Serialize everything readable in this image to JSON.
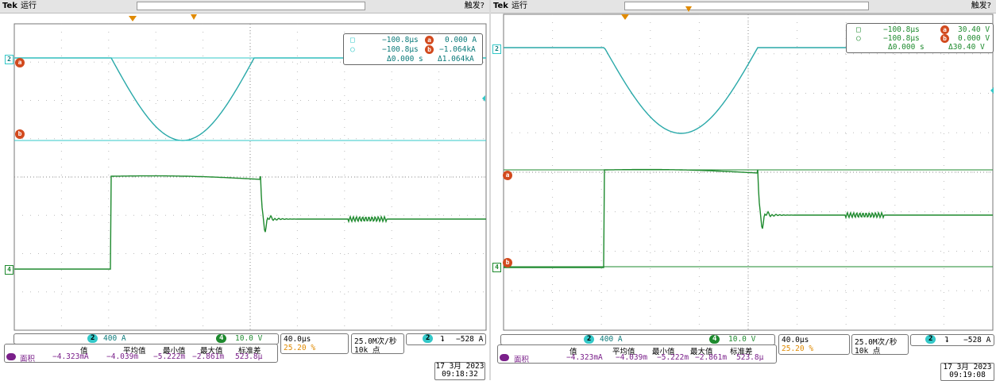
{
  "colors": {
    "ch2": "#33c8c8",
    "ch4": "#1e8a2e",
    "cursor": "#d24a1e",
    "math": "#7a1f8a",
    "grid": "#9a9a9a",
    "trigger": "#e08a00"
  },
  "screens": [
    {
      "brand": "Tek",
      "status": "运行",
      "trigger_status": "触发?",
      "cursor_readout": {
        "row1": {
          "time": "−100.8μs",
          "marker": "a",
          "value": "0.000 A"
        },
        "row2": {
          "time": "−100.8μs",
          "marker": "b",
          "value": "−1.064kA"
        },
        "row3": {
          "dt": "Δ0.000 s",
          "dv": "Δ1.064kA"
        }
      },
      "ch2_scale": {
        "num": "2",
        "value": "400 A"
      },
      "ch4_scale": {
        "num": "4",
        "value": "10.0 V"
      },
      "timebase": {
        "value": "40.0μs",
        "trig_pos": "25.20 %"
      },
      "sample": {
        "rate": "25.0M次/秒",
        "points": "10k 点"
      },
      "trigger": {
        "num": "2",
        "slope": "⮧",
        "level": "−528 A"
      },
      "measure": {
        "label": "面积",
        "headers": [
          "值",
          "平均值",
          "最小值",
          "最大值",
          "标准差"
        ],
        "values": [
          "−4.323mA",
          "−4.039m",
          "−5.222m",
          "−2.861m",
          "523.8μ"
        ]
      },
      "date": "17 3月  2023",
      "time": "09:18:32"
    },
    {
      "brand": "Tek",
      "status": "运行",
      "trigger_status": "触发?",
      "cursor_readout": {
        "row1": {
          "time": "−100.8μs",
          "marker": "a",
          "value": "30.40 V"
        },
        "row2": {
          "time": "−100.8μs",
          "marker": "b",
          "value": "0.000 V"
        },
        "row3": {
          "dt": "Δ0.000 s",
          "dv": "Δ30.40 V"
        }
      },
      "ch2_scale": {
        "num": "2",
        "value": "400 A"
      },
      "ch4_scale": {
        "num": "4",
        "value": "10.0 V"
      },
      "timebase": {
        "value": "40.0μs",
        "trig_pos": "25.20 %"
      },
      "sample": {
        "rate": "25.0M次/秒",
        "points": "10k 点"
      },
      "trigger": {
        "num": "2",
        "slope": "⮧",
        "level": "−528 A"
      },
      "measure": {
        "label": "面积",
        "headers": [
          "值",
          "平均值",
          "最小值",
          "最大值",
          "标准差"
        ],
        "values": [
          "−4.323mA",
          "−4.039m",
          "−5.222m",
          "−2.861m",
          "523.8μ"
        ]
      },
      "date": "17 3月  2023",
      "time": "09:19:08"
    }
  ]
}
